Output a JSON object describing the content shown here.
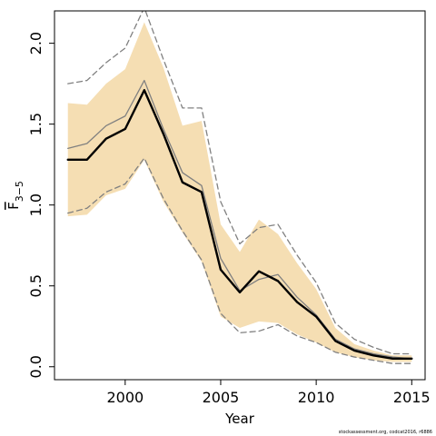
{
  "chart_data": {
    "type": "line",
    "title": "",
    "xlabel": "Year",
    "ylabel": "F",
    "ylabel_subscript": "3−5",
    "x": [
      1997,
      1998,
      1999,
      2000,
      2001,
      2002,
      2003,
      2004,
      2005,
      2006,
      2007,
      2008,
      2009,
      2010,
      2011,
      2012,
      2013,
      2014,
      2015
    ],
    "xlim": [
      1996.3,
      2015.7
    ],
    "ylim": [
      -0.08,
      2.2
    ],
    "xticks": [
      2000,
      2005,
      2010,
      2015
    ],
    "yticks": [
      0.0,
      0.5,
      1.0,
      1.5,
      2.0
    ],
    "ytick_labels": [
      "0.0",
      "0.5",
      "1.0",
      "1.5",
      "2.0"
    ],
    "grid": false,
    "bands": [
      {
        "role": "confidence-interval",
        "color": "#F5DEB3",
        "lower": [
          0.93,
          0.94,
          1.06,
          1.1,
          1.28,
          1.02,
          0.83,
          0.65,
          0.31,
          0.24,
          0.28,
          0.27,
          0.2,
          0.15,
          0.09,
          0.06,
          0.04,
          0.03,
          0.03
        ],
        "upper": [
          1.63,
          1.62,
          1.75,
          1.84,
          2.13,
          1.85,
          1.49,
          1.52,
          0.88,
          0.71,
          0.91,
          0.82,
          0.64,
          0.48,
          0.24,
          0.14,
          0.1,
          0.07,
          0.07
        ]
      }
    ],
    "series": [
      {
        "role": "estimate",
        "color": "#000000",
        "style": "solid-thick",
        "values": [
          1.28,
          1.28,
          1.41,
          1.47,
          1.71,
          1.44,
          1.14,
          1.08,
          0.6,
          0.46,
          0.59,
          0.53,
          0.4,
          0.31,
          0.16,
          0.1,
          0.07,
          0.05,
          0.05
        ]
      },
      {
        "role": "previous-estimate",
        "color": "#808080",
        "style": "solid-thin",
        "values": [
          1.35,
          1.38,
          1.49,
          1.55,
          1.77,
          1.47,
          1.2,
          1.12,
          0.67,
          0.47,
          0.54,
          0.57,
          0.43,
          0.32,
          0.17,
          0.11,
          0.08,
          0.06,
          0.05
        ]
      },
      {
        "role": "previous-upper-bound",
        "color": "#808080",
        "style": "dashed",
        "values": [
          1.75,
          1.77,
          1.88,
          1.97,
          2.22,
          1.9,
          1.6,
          1.6,
          1.02,
          0.76,
          0.86,
          0.88,
          0.69,
          0.52,
          0.27,
          0.17,
          0.12,
          0.08,
          0.08
        ]
      },
      {
        "role": "previous-lower-bound",
        "color": "#808080",
        "style": "dashed",
        "values": [
          0.95,
          0.98,
          1.08,
          1.13,
          1.29,
          1.04,
          0.84,
          0.66,
          0.33,
          0.21,
          0.22,
          0.26,
          0.19,
          0.15,
          0.09,
          0.06,
          0.04,
          0.02,
          0.02
        ]
      }
    ]
  },
  "footer": {
    "credit": "stockassessment.org, codcat2016, r6886"
  }
}
